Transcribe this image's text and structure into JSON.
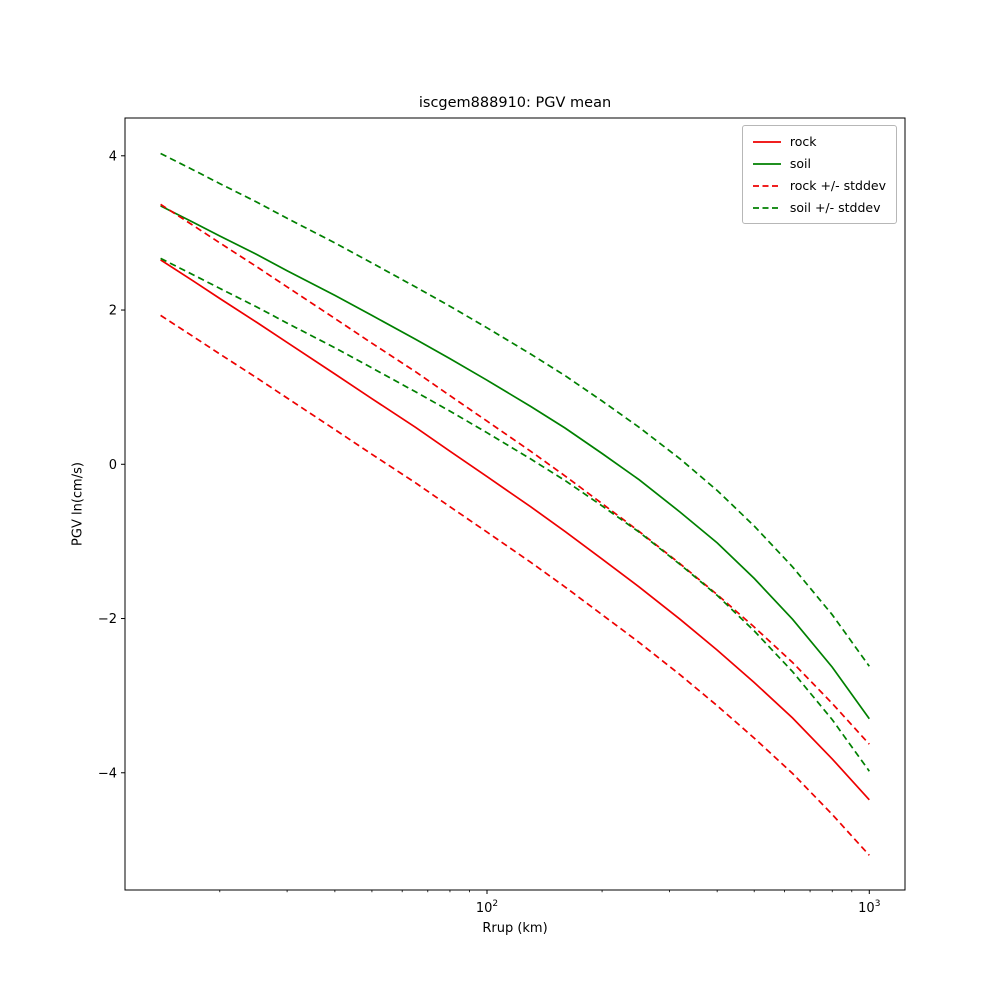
{
  "figure": {
    "title": "iscgem888910: PGV mean",
    "xlabel": "Rrup (km)",
    "ylabel": "PGV ln(cm/s)"
  },
  "chart_data": {
    "type": "line",
    "title": "iscgem888910: PGV mean",
    "xlabel": "Rrup (km)",
    "ylabel": "PGV ln(cm/s)",
    "xscale": "log",
    "grid": false,
    "xlim": [
      11.3,
      1240
    ],
    "ylim": [
      -5.52,
      4.49
    ],
    "yticks": [
      {
        "value": -4,
        "label": "−4"
      },
      {
        "value": -2,
        "label": "−2"
      },
      {
        "value": 0,
        "label": "0"
      },
      {
        "value": 2,
        "label": "2"
      },
      {
        "value": 4,
        "label": "4"
      }
    ],
    "xticks": [
      {
        "value": 100,
        "label_base": "10",
        "label_exp": "2"
      },
      {
        "value": 1000,
        "label_base": "10",
        "label_exp": "3"
      }
    ],
    "colors": {
      "rock": "#ee0000",
      "soil": "#008000"
    },
    "stddev": {
      "rock": 0.72,
      "soil": 0.68
    },
    "x": [
      14,
      17,
      20,
      25,
      30,
      40,
      50,
      65,
      80,
      100,
      130,
      160,
      200,
      250,
      320,
      400,
      500,
      630,
      800,
      1000
    ],
    "series": [
      {
        "name": "rock",
        "label": "rock",
        "color": "#ee0000",
        "style": "solid",
        "values": [
          2.65,
          2.38,
          2.15,
          1.84,
          1.58,
          1.17,
          0.85,
          0.48,
          0.17,
          -0.16,
          -0.55,
          -0.87,
          -1.23,
          -1.59,
          -2.01,
          -2.41,
          -2.83,
          -3.29,
          -3.82,
          -4.35
        ]
      },
      {
        "name": "soil",
        "label": "soil",
        "color": "#008000",
        "style": "solid",
        "values": [
          3.35,
          3.14,
          2.96,
          2.72,
          2.51,
          2.19,
          1.93,
          1.62,
          1.37,
          1.09,
          0.75,
          0.47,
          0.14,
          -0.2,
          -0.62,
          -1.02,
          -1.48,
          -2.01,
          -2.63,
          -3.3
        ]
      },
      {
        "name": "rock_plus_stddev",
        "label": "rock +/- stddev",
        "color": "#ee0000",
        "style": "dashed",
        "values": [
          3.37,
          3.1,
          2.87,
          2.56,
          2.3,
          1.89,
          1.57,
          1.2,
          0.89,
          0.56,
          0.17,
          -0.15,
          -0.51,
          -0.87,
          -1.29,
          -1.69,
          -2.11,
          -2.57,
          -3.1,
          -3.63
        ]
      },
      {
        "name": "rock_minus_stddev",
        "label": "rock +/- stddev",
        "color": "#ee0000",
        "style": "dashed",
        "values": [
          1.93,
          1.66,
          1.43,
          1.12,
          0.86,
          0.45,
          0.13,
          -0.24,
          -0.55,
          -0.88,
          -1.27,
          -1.59,
          -1.95,
          -2.31,
          -2.73,
          -3.13,
          -3.55,
          -4.01,
          -4.54,
          -5.07
        ]
      },
      {
        "name": "soil_plus_stddev",
        "label": "soil +/- stddev",
        "color": "#008000",
        "style": "dashed",
        "values": [
          4.03,
          3.82,
          3.64,
          3.4,
          3.19,
          2.87,
          2.61,
          2.3,
          2.05,
          1.77,
          1.43,
          1.15,
          0.82,
          0.48,
          0.07,
          -0.34,
          -0.8,
          -1.33,
          -1.95,
          -2.62
        ]
      },
      {
        "name": "soil_minus_stddev",
        "label": "soil +/- stddev",
        "color": "#008000",
        "style": "dashed",
        "values": [
          2.67,
          2.46,
          2.28,
          2.04,
          1.83,
          1.51,
          1.25,
          0.94,
          0.69,
          0.41,
          0.07,
          -0.21,
          -0.54,
          -0.88,
          -1.3,
          -1.7,
          -2.16,
          -2.69,
          -3.31,
          -3.98
        ]
      }
    ],
    "legend": [
      {
        "label": "rock",
        "color": "#ee0000",
        "style": "solid"
      },
      {
        "label": "soil",
        "color": "#008000",
        "style": "solid"
      },
      {
        "label": "rock +/- stddev",
        "color": "#ee0000",
        "style": "dashed"
      },
      {
        "label": "soil +/- stddev",
        "color": "#008000",
        "style": "dashed"
      }
    ],
    "legend_position": "upper right"
  }
}
